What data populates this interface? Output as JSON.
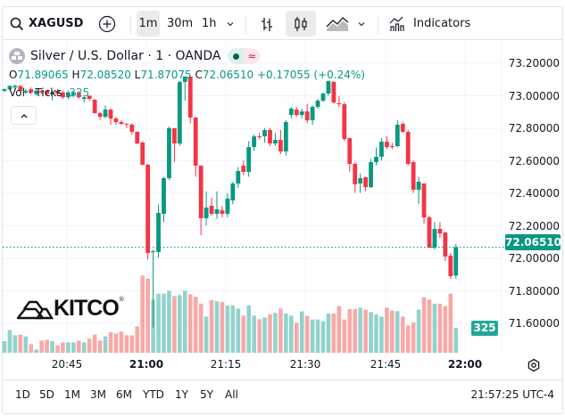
{
  "toolbar": {
    "symbol": "XAGUSD",
    "intervals": [
      "1m",
      "30m",
      "1h"
    ],
    "selected_interval": "1m",
    "indicators_label": "Indicators",
    "icons": [
      "search-icon",
      "plus-circle-icon",
      "chevron-down-icon",
      "bar-chart-icon",
      "candlestick-icon",
      "area-chart-icon",
      "chevron-down-icon",
      "indicators-icon"
    ]
  },
  "legend": {
    "title": "Silver / U.S. Dollar · 1 · OANDA",
    "o_label": "O",
    "o": "71.89065",
    "h_label": "H",
    "h": "72.08520",
    "l_label": "L",
    "l": "71.87075",
    "c_label": "C",
    "c": "72.06510",
    "change": "+0.17055 (+0.24%)",
    "vol_label": "Vol · Ticks",
    "vol": "325"
  },
  "price_axis": [
    "73.20000",
    "73.00000",
    "72.80000",
    "72.60000",
    "72.40000",
    "72.20000",
    "72.00000",
    "71.80000",
    "71.60000"
  ],
  "last_price": "72.06510",
  "last_volume": "325",
  "time_axis": [
    "20:45",
    "21:00",
    "21:15",
    "21:30",
    "21:45",
    "22:00"
  ],
  "ranges": [
    "1D",
    "5D",
    "1M",
    "3M",
    "6M",
    "YTD",
    "1Y",
    "5Y",
    "All"
  ],
  "clock": "21:57:25 UTC-4",
  "logo": "KITCO",
  "colors": {
    "up": "#089981",
    "down": "#f23645",
    "up_vol": "#92d2cc",
    "down_vol": "#f7a9a7"
  },
  "chart_data": {
    "type": "candlestick",
    "interval": "1m",
    "ylim": [
      71.55,
      73.25
    ],
    "ohlc": [
      [
        73.03,
        73.045,
        73.02,
        73.04
      ],
      [
        73.04,
        73.065,
        73.03,
        73.06
      ],
      [
        73.05,
        73.07,
        73.04,
        73.06
      ],
      [
        73.06,
        73.065,
        73.02,
        73.03
      ],
      [
        73.02,
        73.04,
        73.01,
        73.03
      ],
      [
        73.04,
        73.05,
        73.01,
        73.02
      ],
      [
        73.01,
        73.04,
        73.0,
        73.03
      ],
      [
        73.03,
        73.04,
        73.01,
        73.02
      ],
      [
        73.03,
        73.035,
        73.0,
        73.01
      ],
      [
        73.01,
        73.03,
        72.97,
        73.02
      ],
      [
        73.03,
        73.04,
        73.0,
        73.01
      ],
      [
        73.02,
        73.03,
        72.98,
        72.99
      ],
      [
        72.99,
        73.03,
        72.98,
        73.02
      ],
      [
        73.0,
        73.03,
        72.99,
        73.02
      ],
      [
        73.02,
        73.03,
        72.98,
        72.99
      ],
      [
        72.98,
        73.0,
        72.96,
        72.99
      ],
      [
        73.0,
        73.0,
        72.97,
        72.98
      ],
      [
        72.975,
        72.98,
        72.89,
        72.892
      ],
      [
        72.892,
        72.9,
        72.85,
        72.87
      ],
      [
        72.87,
        72.94,
        72.86,
        72.914
      ],
      [
        72.914,
        72.92,
        72.82,
        72.859
      ],
      [
        72.859,
        72.87,
        72.82,
        72.837
      ],
      [
        72.837,
        72.85,
        72.82,
        72.826
      ],
      [
        72.826,
        72.83,
        72.8,
        72.821
      ],
      [
        72.821,
        72.83,
        72.76,
        72.777
      ],
      [
        72.777,
        72.78,
        72.7,
        72.705
      ],
      [
        72.711,
        72.72,
        72.57,
        72.574
      ],
      [
        72.574,
        72.58,
        71.99,
        72.03
      ],
      [
        72.035,
        72.05,
        71.57,
        72.04
      ],
      [
        72.035,
        72.33,
        72.0,
        72.277
      ],
      [
        72.271,
        72.5,
        72.22,
        72.491
      ],
      [
        72.491,
        72.81,
        72.48,
        72.799
      ],
      [
        72.799,
        72.8,
        72.59,
        72.705
      ],
      [
        72.705,
        73.09,
        72.69,
        73.085
      ],
      [
        73.085,
        73.12,
        72.97,
        73.118
      ],
      [
        73.118,
        73.12,
        72.83,
        72.865
      ],
      [
        72.865,
        72.87,
        72.5,
        72.568
      ],
      [
        72.568,
        72.57,
        72.14,
        72.244
      ],
      [
        72.244,
        72.41,
        72.2,
        72.31
      ],
      [
        72.321,
        72.37,
        72.26,
        72.271
      ],
      [
        72.271,
        72.41,
        72.24,
        72.299
      ],
      [
        72.293,
        72.32,
        72.25,
        72.271
      ],
      [
        72.271,
        72.4,
        72.25,
        72.365
      ],
      [
        72.354,
        72.47,
        72.33,
        72.458
      ],
      [
        72.458,
        72.56,
        72.43,
        72.535
      ],
      [
        72.568,
        72.6,
        72.51,
        72.53
      ],
      [
        72.53,
        72.72,
        72.5,
        72.683
      ],
      [
        72.683,
        72.76,
        72.66,
        72.749
      ],
      [
        72.749,
        72.77,
        72.73,
        72.744
      ],
      [
        72.749,
        72.8,
        72.71,
        72.788
      ],
      [
        72.788,
        72.8,
        72.69,
        72.705
      ],
      [
        72.705,
        72.77,
        72.69,
        72.727
      ],
      [
        72.727,
        72.79,
        72.64,
        72.656
      ],
      [
        72.656,
        72.85,
        72.63,
        72.837
      ],
      [
        72.881,
        72.93,
        72.86,
        72.92
      ],
      [
        72.914,
        72.93,
        72.87,
        72.881
      ],
      [
        72.881,
        72.92,
        72.86,
        72.903
      ],
      [
        72.903,
        72.95,
        72.83,
        72.848
      ],
      [
        72.848,
        72.94,
        72.82,
        72.931
      ],
      [
        72.931,
        72.98,
        72.92,
        72.969
      ],
      [
        72.969,
        73.02,
        72.96,
        73.013
      ],
      [
        73.013,
        73.095,
        73.0,
        73.09
      ],
      [
        73.085,
        73.09,
        72.95,
        72.958
      ],
      [
        72.953,
        73.0,
        72.93,
        72.947
      ],
      [
        72.947,
        72.96,
        72.72,
        72.733
      ],
      [
        72.738,
        72.74,
        72.53,
        72.579
      ],
      [
        72.579,
        72.59,
        72.4,
        72.453
      ],
      [
        72.458,
        72.52,
        72.4,
        72.491
      ],
      [
        72.497,
        72.5,
        72.41,
        72.436
      ],
      [
        72.436,
        72.61,
        72.43,
        72.59
      ],
      [
        72.59,
        72.68,
        72.57,
        72.623
      ],
      [
        72.623,
        72.74,
        72.6,
        72.716
      ],
      [
        72.716,
        72.75,
        72.67,
        72.683
      ],
      [
        72.689,
        72.71,
        72.67,
        72.683
      ],
      [
        72.689,
        72.85,
        72.68,
        72.821
      ],
      [
        72.826,
        72.84,
        72.77,
        72.777
      ],
      [
        72.777,
        72.79,
        72.57,
        72.579
      ],
      [
        72.59,
        72.6,
        72.4,
        72.42
      ],
      [
        72.42,
        72.5,
        72.33,
        72.469
      ],
      [
        72.458,
        72.46,
        72.21,
        72.249
      ],
      [
        72.249,
        72.26,
        72.06,
        72.062
      ],
      [
        72.062,
        72.22,
        72.05,
        72.178
      ],
      [
        72.178,
        72.22,
        72.12,
        72.15
      ],
      [
        72.156,
        72.16,
        71.98,
        72.008
      ],
      [
        72.013,
        72.03,
        71.87,
        71.887
      ],
      [
        71.89065,
        72.0852,
        71.87075,
        72.0651
      ]
    ],
    "volume": [
      151,
      298,
      228,
      236,
      213,
      112,
      43,
      159,
      170,
      151,
      97,
      135,
      135,
      135,
      159,
      135,
      182,
      236,
      159,
      213,
      267,
      252,
      275,
      228,
      228,
      344,
      1006,
      964,
      693,
      770,
      770,
      809,
      739,
      751,
      809,
      762,
      731,
      639,
      472,
      685,
      670,
      662,
      615,
      615,
      577,
      484,
      615,
      484,
      437,
      460,
      500,
      520,
      577,
      511,
      484,
      391,
      538,
      480,
      433,
      433,
      414,
      511,
      511,
      608,
      433,
      569,
      569,
      588,
      560,
      530,
      500,
      470,
      588,
      550,
      542,
      472,
      356,
      395,
      561,
      724,
      693,
      639,
      639,
      608,
      770,
      325
    ]
  }
}
